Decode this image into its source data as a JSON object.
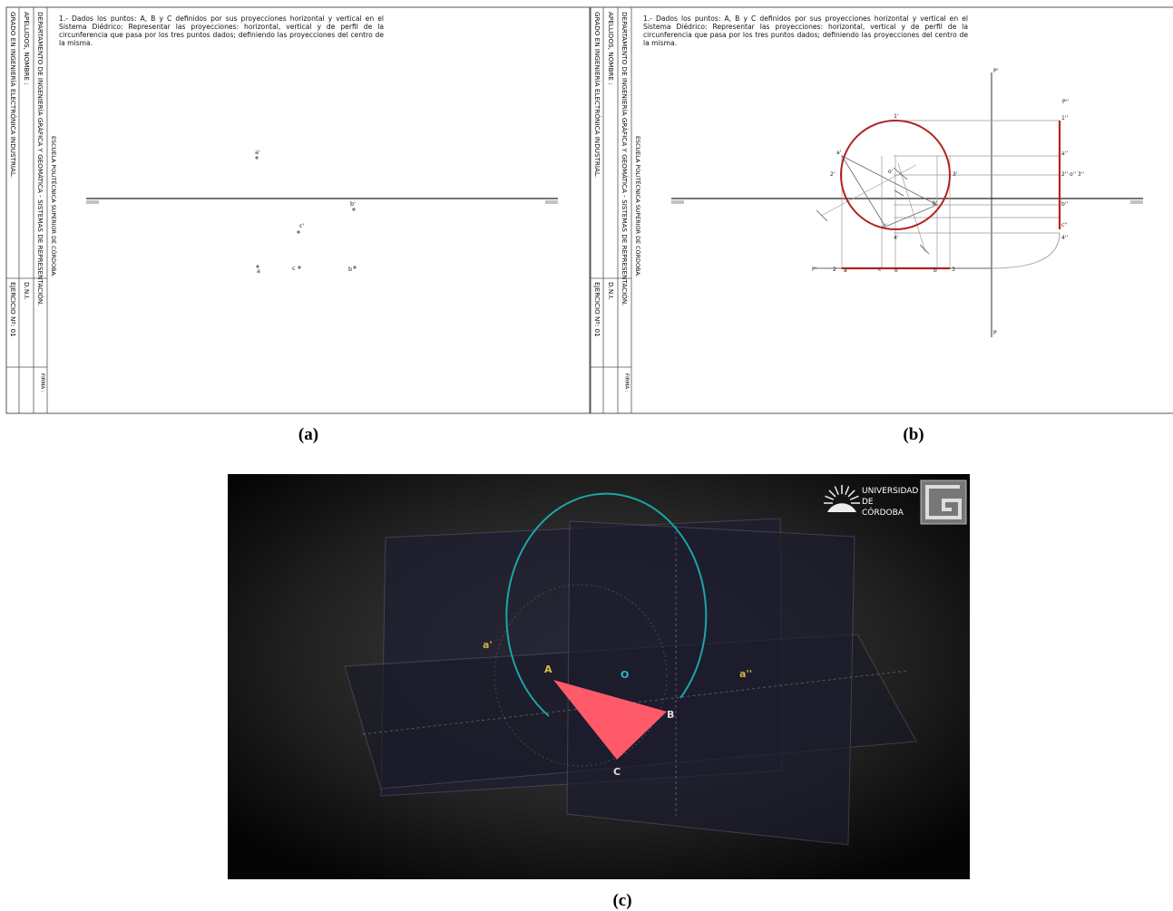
{
  "sheet": {
    "statement": "1.- Dados los puntos: A, B y C definidos por sus proyecciones horizontal y vertical en el Sistema Diédrico: Representar las proyecciones: horizontal,  vertical y de perfil de la circunferencia que pasa por los tres puntos dados; definiendo las proyecciones del centro de la misma.",
    "department": "DEPARTAMENTO DE INGENIERÍA GRÁFICA Y GEOMÁTICA - SISTEMAS DE REPRESENTACIÓN.",
    "school": "ESCUELA POLITÉCNICA SUPERIOR DE CÓRDOBA.",
    "name_field": "APELLIDOS, NOMBRE :",
    "id_field": "D.N.I.",
    "degree": "GRADO EN INGENIERÍA ELECTRÓNICA INDUSTRIAL.",
    "exercise": "EJERCICIO Nº: 01",
    "signature": "FIRMA :"
  },
  "panels": [
    {
      "caption": "(a)",
      "labels": [
        "a'",
        "b'",
        "c'",
        "a",
        "c",
        "b"
      ]
    },
    {
      "caption": "(b)",
      "labels": [
        "a'",
        "1'",
        "2'",
        "o'",
        "3'",
        "b'",
        "c'",
        "4'",
        "P'",
        "P''",
        "1''",
        "a''",
        "2'' o'' 3''",
        "b''",
        "c''",
        "4''",
        "P",
        "P'",
        "2",
        "a",
        "c",
        "o",
        "b",
        "3"
      ]
    },
    {
      "caption": "(c)",
      "labels": [
        "a'",
        "a''",
        "A",
        "O",
        "B",
        "C"
      ],
      "logo": [
        "UNIVERSIDAD",
        "DE",
        "CÓRDOBA"
      ]
    }
  ]
}
